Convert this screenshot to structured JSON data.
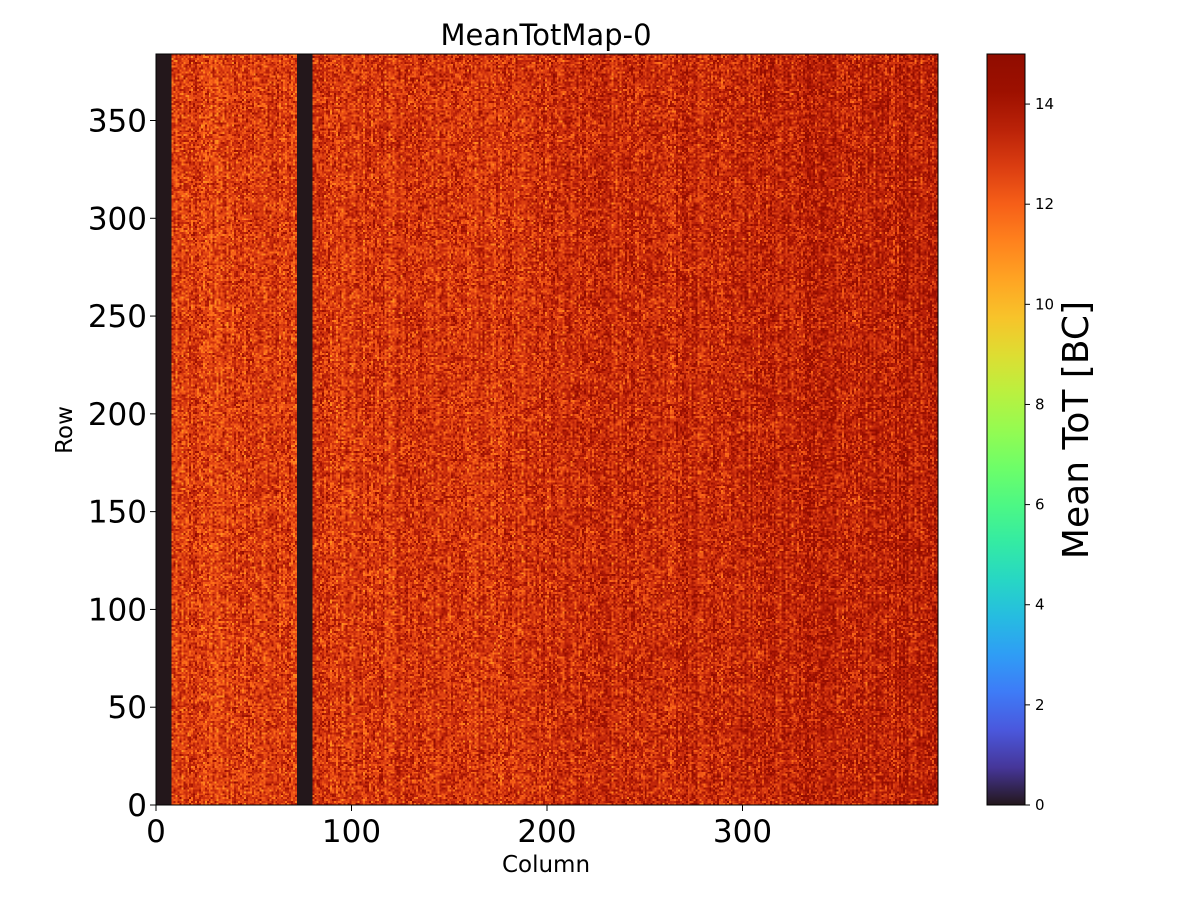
{
  "chart_data": {
    "type": "heatmap",
    "title": "MeanTotMap-0",
    "xlabel": "Column",
    "ylabel": "Row",
    "colorbar_label": "Mean ToT [BC]",
    "colormap": "turbo",
    "xlim": [
      0,
      400
    ],
    "ylim": [
      0,
      384
    ],
    "clim": [
      0,
      15
    ],
    "x_ticks": [
      0,
      100,
      200,
      300
    ],
    "y_ticks": [
      0,
      50,
      100,
      150,
      200,
      250,
      300,
      350
    ],
    "colorbar_ticks": [
      0,
      2,
      4,
      6,
      8,
      10,
      12,
      14
    ],
    "grid": false,
    "dead_column_ranges": [
      [
        0,
        8
      ],
      [
        72,
        80
      ]
    ],
    "typical_value": 13,
    "value_range_active": [
      11,
      15
    ],
    "left_region_mean": 12.6,
    "right_region_mean": 13.6
  }
}
